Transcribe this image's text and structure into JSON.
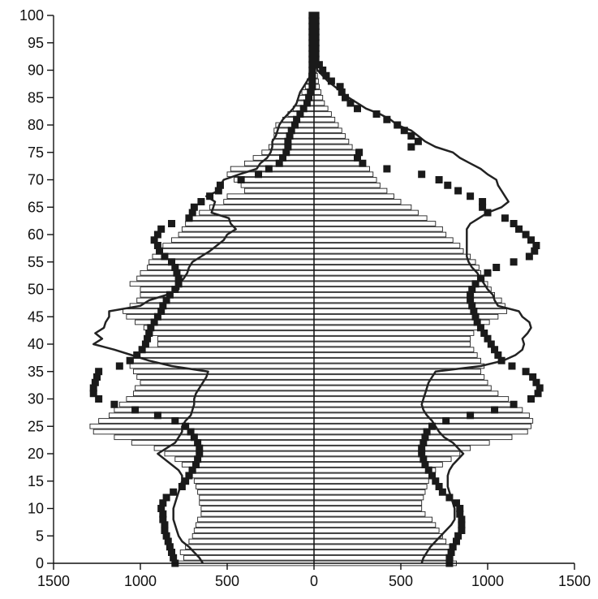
{
  "chart_data": {
    "type": "bar",
    "orientation": "horizontal-population-pyramid",
    "title": "",
    "xlabel": "",
    "ylabel": "",
    "xlim": [
      -1500,
      1500
    ],
    "ylim": [
      0,
      100
    ],
    "x_ticks": [
      {
        "value": -1500,
        "label": "1500"
      },
      {
        "value": -1000,
        "label": "1000"
      },
      {
        "value": -500,
        "label": "500"
      },
      {
        "value": 0,
        "label": "0"
      },
      {
        "value": 500,
        "label": "500"
      },
      {
        "value": 1000,
        "label": "1000"
      },
      {
        "value": 1500,
        "label": "1500"
      }
    ],
    "y_ticks": [
      "0",
      "5",
      "10",
      "15",
      "20",
      "25",
      "30",
      "35",
      "40",
      "45",
      "50",
      "55",
      "60",
      "65",
      "70",
      "75",
      "80",
      "85",
      "90",
      "95",
      "100"
    ],
    "grid": false,
    "legend": "none",
    "colors": {
      "bar_fill": "#ffffff",
      "bar_stroke": "#222222",
      "line": "#222222",
      "marker": "#1a1a1a"
    },
    "series": [
      {
        "role": "bars",
        "x_left": [
          800,
          750,
          770,
          740,
          720,
          700,
          690,
          680,
          670,
          650,
          650,
          660,
          660,
          670,
          680,
          690,
          700,
          720,
          760,
          800,
          860,
          920,
          1050,
          1150,
          1270,
          1290,
          1240,
          1180,
          1150,
          1120,
          1080,
          1040,
          1030,
          1000,
          1020,
          1040,
          1060,
          1040,
          1010,
          990,
          900,
          900,
          930,
          980,
          1030,
          1080,
          1100,
          1060,
          1020,
          1000,
          1000,
          1060,
          1020,
          1000,
          960,
          950,
          930,
          890,
          870,
          820,
          780,
          760,
          740,
          700,
          660,
          600,
          520,
          500,
          400,
          420,
          460,
          500,
          480,
          400,
          350,
          300,
          260,
          240,
          230,
          230,
          220,
          180,
          150,
          120,
          100,
          90,
          70,
          50,
          40,
          30,
          25,
          20,
          15,
          12,
          10,
          8,
          6,
          4,
          3,
          2,
          1
        ],
        "x_right": [
          820,
          800,
          790,
          780,
          760,
          740,
          720,
          700,
          680,
          640,
          620,
          620,
          630,
          640,
          650,
          660,
          680,
          700,
          740,
          790,
          840,
          900,
          1010,
          1140,
          1230,
          1250,
          1260,
          1240,
          1200,
          1150,
          1120,
          1060,
          1020,
          1000,
          980,
          960,
          980,
          960,
          940,
          920,
          900,
          900,
          920,
          960,
          1010,
          1060,
          1110,
          1100,
          1080,
          1040,
          1020,
          1000,
          980,
          960,
          950,
          930,
          900,
          860,
          840,
          800,
          760,
          740,
          700,
          650,
          600,
          560,
          500,
          460,
          420,
          380,
          360,
          340,
          320,
          290,
          260,
          240,
          220,
          200,
          180,
          160,
          140,
          120,
          100,
          80,
          60,
          50,
          40,
          30,
          25,
          20,
          15,
          12,
          10,
          8,
          6,
          5,
          4,
          3,
          2,
          1,
          0
        ]
      },
      {
        "role": "markers",
        "x_left": [
          800,
          810,
          820,
          830,
          840,
          850,
          860,
          860,
          870,
          870,
          880,
          870,
          850,
          810,
          760,
          740,
          720,
          700,
          680,
          670,
          660,
          660,
          670,
          690,
          710,
          740,
          800,
          900,
          1030,
          1150,
          1240,
          1270,
          1270,
          1260,
          1250,
          1240,
          1120,
          1060,
          1020,
          990,
          970,
          960,
          950,
          940,
          920,
          900,
          880,
          870,
          850,
          830,
          800,
          780,
          780,
          790,
          800,
          820,
          860,
          890,
          900,
          920,
          900,
          880,
          820,
          720,
          700,
          690,
          650,
          600,
          550,
          540,
          420,
          320,
          260,
          200,
          180,
          160,
          150,
          150,
          140,
          130,
          110,
          100,
          80,
          60,
          40,
          30,
          20,
          10,
          10,
          10,
          10,
          10,
          10,
          10,
          10,
          10,
          10,
          10,
          10,
          10,
          10
        ],
        "x_right": [
          780,
          780,
          790,
          800,
          820,
          830,
          850,
          850,
          850,
          840,
          840,
          820,
          780,
          740,
          720,
          700,
          680,
          660,
          640,
          630,
          620,
          620,
          630,
          640,
          650,
          680,
          760,
          900,
          1040,
          1150,
          1250,
          1290,
          1300,
          1280,
          1260,
          1220,
          1140,
          1080,
          1060,
          1040,
          1020,
          1000,
          980,
          960,
          940,
          930,
          920,
          910,
          900,
          900,
          910,
          930,
          960,
          1000,
          1050,
          1150,
          1240,
          1270,
          1280,
          1250,
          1220,
          1180,
          1150,
          1100,
          1000,
          970,
          970,
          900,
          830,
          770,
          720,
          620,
          420,
          280,
          250,
          260,
          560,
          600,
          560,
          520,
          480,
          420,
          360,
          250,
          210,
          180,
          160,
          150,
          100,
          70,
          50,
          30,
          10,
          10,
          10,
          10,
          10,
          10,
          10,
          10,
          10
        ]
      },
      {
        "role": "line",
        "x_left": [
          640,
          660,
          690,
          720,
          760,
          780,
          790,
          800,
          810,
          810,
          810,
          800,
          790,
          780,
          770,
          760,
          760,
          780,
          820,
          860,
          900,
          850,
          800,
          780,
          760,
          760,
          740,
          710,
          700,
          690,
          690,
          680,
          660,
          640,
          620,
          610,
          820,
          950,
          1050,
          1150,
          1270,
          1220,
          1260,
          1210,
          1200,
          1180,
          1180,
          1000,
          950,
          850,
          780,
          780,
          750,
          730,
          720,
          700,
          650,
          600,
          560,
          520,
          500,
          450,
          480,
          490,
          590,
          580,
          570,
          620,
          550,
          540,
          520,
          430,
          330,
          310,
          270,
          250,
          240,
          240,
          220,
          210,
          200,
          180,
          150,
          120,
          100,
          90,
          80,
          60,
          40,
          20,
          10,
          5,
          5,
          5,
          5,
          5,
          5,
          5,
          5,
          5,
          5
        ],
        "x_right": [
          620,
          630,
          650,
          670,
          700,
          730,
          760,
          790,
          810,
          810,
          810,
          800,
          790,
          780,
          770,
          770,
          770,
          780,
          800,
          830,
          860,
          830,
          800,
          750,
          720,
          700,
          680,
          650,
          630,
          620,
          630,
          640,
          650,
          660,
          680,
          700,
          960,
          1090,
          1160,
          1200,
          1210,
          1200,
          1230,
          1250,
          1240,
          1200,
          1180,
          1060,
          1040,
          1030,
          1000,
          980,
          960,
          940,
          910,
          890,
          880,
          880,
          880,
          880,
          880,
          880,
          900,
          950,
          1000,
          1080,
          1120,
          1100,
          1080,
          1060,
          1050,
          1000,
          960,
          900,
          840,
          800,
          700,
          640,
          600,
          560,
          480,
          440,
          380,
          300,
          250,
          200,
          160,
          120,
          80,
          50,
          20,
          10,
          5,
          5,
          5,
          5,
          5,
          5,
          5,
          5,
          5
        ]
      }
    ]
  }
}
